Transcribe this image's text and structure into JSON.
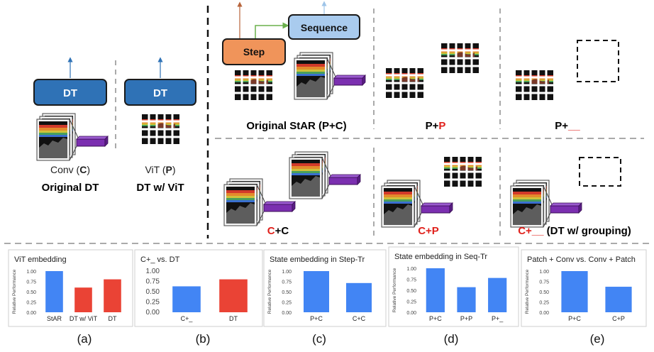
{
  "colors": {
    "dt_box": "#2f72b6",
    "step_box": "#f0945a",
    "sequence_box": "#a9cbee",
    "arrow_blue": "#2f72b6",
    "arrow_brown": "#b7643b",
    "arrow_green": "#6ab04c",
    "arrow_light": "#9ec4e8",
    "embed_bar": "#7b2fb0",
    "bar_blue": "#4285f4",
    "bar_red": "#ea4335",
    "highlight_red": "#e0201b"
  },
  "icons": [
    "conv-state-icon",
    "patch-grid-icon",
    "embedding-bar-icon",
    "empty-placeholder-icon",
    "up-arrow-icon"
  ],
  "diagram": {
    "dt_box_label": "DT",
    "step_box_label": "Step",
    "sequence_box_label": "Sequence",
    "left_panel": {
      "conv_prefix": "Conv (",
      "conv_letter": "C",
      "conv_suffix": ")",
      "original_dt": "Original DT",
      "vit_prefix": "ViT (",
      "vit_letter": "P",
      "vit_suffix": ")",
      "dt_vit": "DT w/ ViT"
    },
    "captions": {
      "original_star": "Original StAR (P+C)",
      "pp_a": "P+",
      "pp_b": "P",
      "p_blank": "P+",
      "blank": "__",
      "cc_a": "C",
      "cc_b": "+C",
      "cp_a": "C+",
      "cp_b": "P",
      "cblank_a": "C+",
      "cblank_b": "__",
      "cblank_c": " (DT w/ grouping)"
    }
  },
  "sublabels": [
    "(a)",
    "(b)",
    "(c)",
    "(d)",
    "(e)"
  ],
  "chart_data": [
    {
      "type": "bar",
      "title": "ViT embedding",
      "ylabel": "Relative Performance",
      "categories": [
        "StAR",
        "DT w/ ViT",
        "DT"
      ],
      "values": [
        1.0,
        0.6,
        0.8
      ],
      "colors": [
        "#4285f4",
        "#ea4335",
        "#ea4335"
      ],
      "ylim": [
        0,
        1
      ],
      "yticks": [
        "0.00",
        "0.25",
        "0.50",
        "0.75",
        "1.00"
      ]
    },
    {
      "type": "bar",
      "title": "C+_ vs. DT",
      "ylabel": "",
      "categories": [
        "C+_",
        "DT"
      ],
      "values": [
        0.63,
        0.8
      ],
      "colors": [
        "#4285f4",
        "#ea4335"
      ],
      "ylim": [
        0,
        1
      ],
      "yticks": [
        "0.00",
        "0.25",
        "0.50",
        "0.75",
        "1.00"
      ]
    },
    {
      "type": "bar",
      "title": "State embedding in Step-Tr",
      "ylabel": "Relative Performance",
      "categories": [
        "P+C",
        "C+C"
      ],
      "values": [
        1.0,
        0.71
      ],
      "colors": [
        "#4285f4",
        "#4285f4"
      ],
      "ylim": [
        0,
        1
      ],
      "yticks": [
        "0.00",
        "0.25",
        "0.50",
        "0.75",
        "1.00"
      ]
    },
    {
      "type": "bar",
      "title": "State embedding in Seq-Tr",
      "ylabel": "Relative Performance",
      "categories": [
        "P+C",
        "P+P",
        "P+_"
      ],
      "values": [
        1.0,
        0.57,
        0.78
      ],
      "colors": [
        "#4285f4",
        "#4285f4",
        "#4285f4"
      ],
      "ylim": [
        0,
        1
      ],
      "yticks": [
        "0.00",
        "0.25",
        "0.50",
        "0.75",
        "1.00"
      ]
    },
    {
      "type": "bar",
      "title": "Patch + Conv vs. Conv + Patch",
      "ylabel": "Relative Performance",
      "categories": [
        "P+C",
        "C+P"
      ],
      "values": [
        1.0,
        0.62
      ],
      "colors": [
        "#4285f4",
        "#4285f4"
      ],
      "ylim": [
        0,
        1
      ],
      "yticks": [
        "0.00",
        "0.25",
        "0.50",
        "0.75",
        "1.00"
      ]
    }
  ]
}
